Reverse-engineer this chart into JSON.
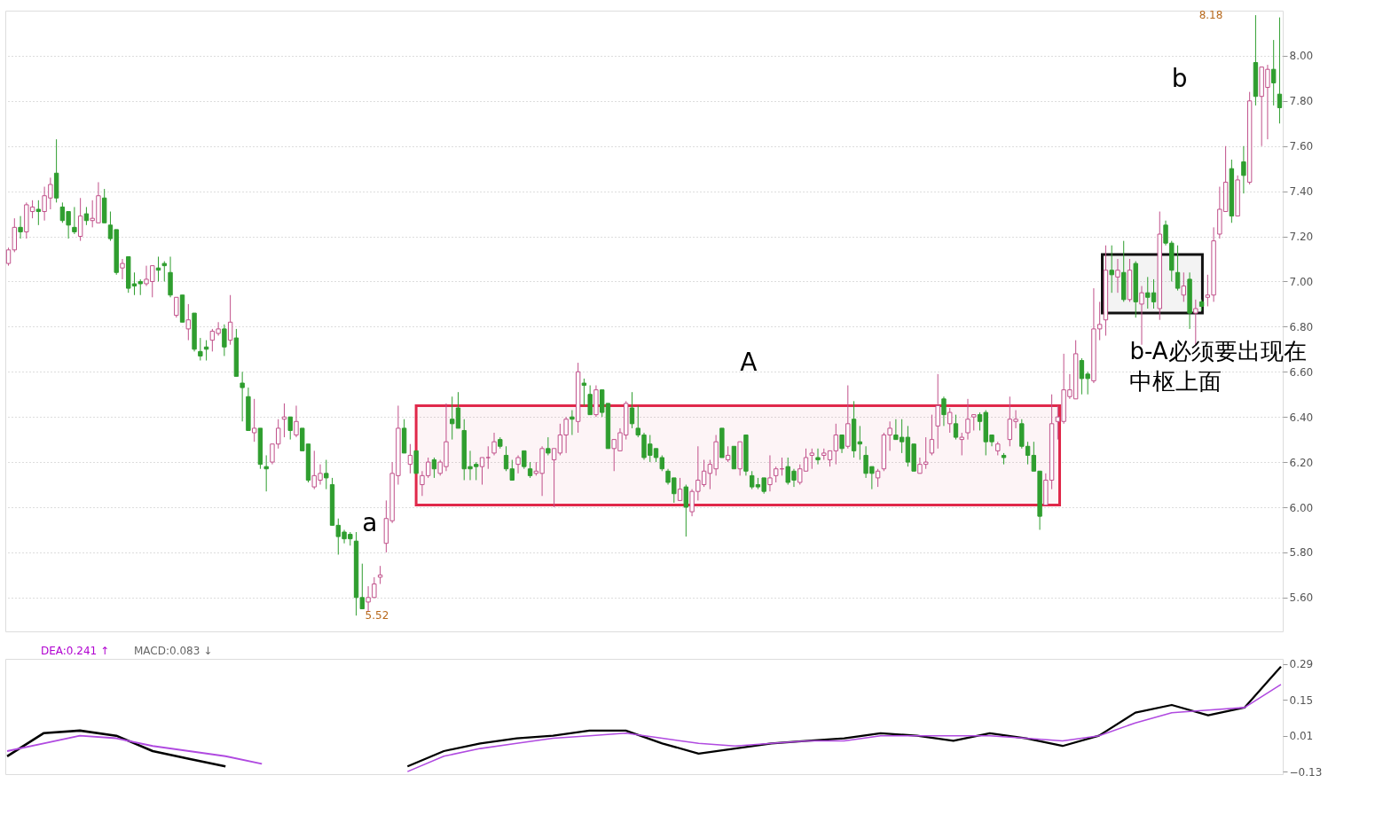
{
  "chart_data": [
    {
      "type": "candlestick",
      "categories": [
        null,
        null,
        null,
        null,
        null,
        null,
        null,
        null,
        null,
        null,
        null,
        null,
        null,
        null,
        null,
        null,
        null,
        null,
        null,
        null,
        null,
        null,
        null,
        null,
        null,
        null,
        null,
        null,
        null,
        null,
        null,
        null,
        null,
        null,
        null,
        null,
        null,
        null,
        null,
        null,
        null,
        null,
        null,
        null,
        null,
        null,
        null,
        null,
        null,
        null,
        null,
        null,
        null,
        null,
        null,
        null,
        null,
        null,
        null,
        null,
        null,
        null,
        null,
        null,
        null,
        null,
        null,
        null,
        null,
        null,
        null,
        null,
        null,
        null,
        null,
        null,
        null,
        null,
        null,
        null,
        null,
        null,
        null,
        null,
        null,
        null,
        null,
        null,
        null,
        null,
        null,
        null,
        null,
        null,
        null,
        null,
        null,
        null,
        null,
        null,
        null,
        null,
        null,
        null,
        null,
        null,
        null,
        null,
        null,
        null,
        null,
        null,
        null,
        null,
        null,
        null,
        null,
        null,
        null,
        null,
        null,
        null,
        null,
        null,
        null,
        null,
        null,
        null,
        null,
        null,
        null,
        null,
        null,
        null,
        null,
        null,
        null,
        null,
        null,
        null,
        null,
        null,
        null,
        null,
        null,
        null,
        null,
        null,
        null,
        null,
        null,
        null,
        null,
        null,
        null,
        null,
        null,
        null,
        null,
        null,
        null,
        null,
        null,
        null,
        null,
        null,
        null,
        null,
        null,
        null,
        null,
        null,
        null,
        null,
        null,
        null,
        null,
        null,
        null,
        null,
        null,
        null,
        null,
        null,
        null,
        null,
        null,
        null,
        null,
        null,
        null,
        null,
        null,
        null,
        null,
        null,
        null,
        null,
        null,
        null,
        null,
        null,
        null,
        null,
        null,
        null,
        null,
        null,
        null,
        null,
        null,
        null,
        null
      ],
      "ohlc": [
        [
          7.08,
          7.15,
          7.07,
          7.14
        ],
        [
          7.14,
          7.28,
          7.13,
          7.24
        ],
        [
          7.24,
          7.29,
          7.19,
          7.22
        ],
        [
          7.22,
          7.35,
          7.19,
          7.34
        ],
        [
          7.31,
          7.36,
          7.28,
          7.33
        ],
        [
          7.32,
          7.36,
          7.25,
          7.31
        ],
        [
          7.31,
          7.42,
          7.27,
          7.38
        ],
        [
          7.37,
          7.46,
          7.32,
          7.43
        ],
        [
          7.48,
          7.63,
          7.35,
          7.37
        ],
        [
          7.33,
          7.35,
          7.26,
          7.27
        ],
        [
          7.31,
          7.31,
          7.19,
          7.25
        ],
        [
          7.24,
          7.33,
          7.21,
          7.22
        ],
        [
          7.2,
          7.37,
          7.18,
          7.29
        ],
        [
          7.3,
          7.33,
          7.25,
          7.27
        ],
        [
          7.27,
          7.36,
          7.24,
          7.28
        ],
        [
          7.26,
          7.44,
          7.26,
          7.38
        ],
        [
          7.37,
          7.41,
          7.26,
          7.26
        ],
        [
          7.25,
          7.31,
          7.18,
          7.19
        ],
        [
          7.23,
          7.23,
          7.03,
          7.04
        ],
        [
          7.06,
          7.1,
          7.01,
          7.08
        ],
        [
          7.11,
          7.11,
          6.95,
          6.97
        ],
        [
          6.99,
          7.04,
          6.94,
          6.98
        ],
        [
          7.0,
          7.01,
          6.94,
          6.99
        ],
        [
          6.99,
          7.07,
          6.98,
          7.01
        ],
        [
          7.0,
          7.07,
          6.93,
          7.07
        ],
        [
          7.06,
          7.11,
          7.0,
          7.05
        ],
        [
          7.08,
          7.09,
          7.0,
          7.07
        ],
        [
          7.04,
          7.11,
          6.93,
          6.94
        ],
        [
          6.85,
          6.93,
          6.84,
          6.93
        ],
        [
          6.94,
          6.94,
          6.82,
          6.82
        ],
        [
          6.79,
          6.9,
          6.74,
          6.83
        ],
        [
          6.86,
          6.86,
          6.69,
          6.7
        ],
        [
          6.69,
          6.75,
          6.65,
          6.67
        ],
        [
          6.71,
          6.74,
          6.65,
          6.7
        ],
        [
          6.74,
          6.79,
          6.69,
          6.78
        ],
        [
          6.77,
          6.82,
          6.76,
          6.79
        ],
        [
          6.79,
          6.81,
          6.67,
          6.71
        ],
        [
          6.74,
          6.94,
          6.72,
          6.82
        ],
        [
          6.75,
          6.79,
          6.58,
          6.58
        ],
        [
          6.55,
          6.6,
          6.38,
          6.53
        ],
        [
          6.49,
          6.53,
          6.34,
          6.34
        ],
        [
          6.33,
          6.48,
          6.29,
          6.35
        ],
        [
          6.35,
          6.35,
          6.17,
          6.19
        ],
        [
          6.18,
          6.23,
          6.07,
          6.17
        ],
        [
          6.2,
          6.28,
          6.19,
          6.28
        ],
        [
          6.28,
          6.39,
          6.26,
          6.35
        ],
        [
          6.39,
          6.46,
          6.31,
          6.4
        ],
        [
          6.4,
          6.4,
          6.3,
          6.34
        ],
        [
          6.32,
          6.45,
          6.31,
          6.38
        ],
        [
          6.35,
          6.35,
          6.25,
          6.25
        ],
        [
          6.28,
          6.28,
          6.11,
          6.12
        ],
        [
          6.09,
          6.25,
          6.08,
          6.14
        ],
        [
          6.12,
          6.19,
          6.1,
          6.15
        ],
        [
          6.15,
          6.21,
          6.08,
          6.13
        ],
        [
          6.1,
          6.13,
          5.92,
          5.92
        ],
        [
          5.92,
          5.95,
          5.79,
          5.87
        ],
        [
          5.89,
          5.9,
          5.84,
          5.86
        ],
        [
          5.88,
          5.89,
          5.83,
          5.86
        ],
        [
          5.85,
          5.89,
          5.52,
          5.6
        ],
        [
          5.6,
          5.75,
          5.55,
          5.55
        ],
        [
          5.58,
          5.65,
          5.54,
          5.6
        ],
        [
          5.6,
          5.69,
          5.6,
          5.66
        ],
        [
          5.69,
          5.74,
          5.66,
          5.7
        ],
        [
          5.84,
          6.03,
          5.8,
          5.95
        ],
        [
          5.94,
          6.2,
          5.93,
          6.15
        ],
        [
          6.14,
          6.45,
          6.1,
          6.35
        ],
        [
          6.35,
          6.39,
          6.24,
          6.24
        ],
        [
          6.19,
          6.28,
          6.15,
          6.23
        ],
        [
          6.25,
          6.25,
          6.15,
          6.15
        ],
        [
          6.1,
          6.16,
          6.05,
          6.14
        ],
        [
          6.14,
          6.22,
          6.13,
          6.2
        ],
        [
          6.21,
          6.22,
          6.13,
          6.17
        ],
        [
          6.15,
          6.21,
          6.14,
          6.2
        ],
        [
          6.18,
          6.46,
          6.16,
          6.29
        ],
        [
          6.39,
          6.49,
          6.3,
          6.37
        ],
        [
          6.44,
          6.51,
          6.35,
          6.35
        ],
        [
          6.34,
          6.39,
          6.12,
          6.17
        ],
        [
          6.18,
          6.25,
          6.12,
          6.17
        ],
        [
          6.19,
          6.2,
          6.12,
          6.18
        ],
        [
          6.18,
          6.22,
          6.1,
          6.22
        ],
        [
          6.22,
          6.27,
          6.17,
          6.22
        ],
        [
          6.24,
          6.33,
          6.23,
          6.29
        ],
        [
          6.3,
          6.31,
          6.26,
          6.27
        ],
        [
          6.23,
          6.27,
          6.16,
          6.17
        ],
        [
          6.17,
          6.21,
          6.12,
          6.12
        ],
        [
          6.19,
          6.23,
          6.15,
          6.22
        ],
        [
          6.25,
          6.25,
          6.17,
          6.18
        ],
        [
          6.17,
          6.2,
          6.13,
          6.14
        ],
        [
          6.15,
          6.2,
          6.14,
          6.16
        ],
        [
          6.15,
          6.27,
          6.05,
          6.26
        ],
        [
          6.26,
          6.31,
          6.23,
          6.24
        ],
        [
          6.21,
          6.26,
          6.0,
          6.26
        ],
        [
          6.24,
          6.37,
          6.23,
          6.32
        ],
        [
          6.32,
          6.4,
          6.24,
          6.39
        ],
        [
          6.4,
          6.43,
          6.32,
          6.39
        ],
        [
          6.38,
          6.64,
          6.33,
          6.6
        ],
        [
          6.55,
          6.57,
          6.45,
          6.54
        ],
        [
          6.5,
          6.54,
          6.41,
          6.41
        ],
        [
          6.41,
          6.54,
          6.4,
          6.52
        ],
        [
          6.52,
          6.52,
          6.4,
          6.42
        ],
        [
          6.46,
          6.46,
          6.26,
          6.26
        ],
        [
          6.26,
          6.3,
          6.16,
          6.3
        ],
        [
          6.25,
          6.35,
          6.25,
          6.33
        ],
        [
          6.32,
          6.47,
          6.3,
          6.46
        ],
        [
          6.44,
          6.51,
          6.35,
          6.37
        ],
        [
          6.35,
          6.45,
          6.31,
          6.32
        ],
        [
          6.32,
          6.33,
          6.21,
          6.22
        ],
        [
          6.28,
          6.32,
          6.2,
          6.23
        ],
        [
          6.26,
          6.26,
          6.2,
          6.22
        ],
        [
          6.22,
          6.23,
          6.16,
          6.17
        ],
        [
          6.16,
          6.17,
          6.1,
          6.11
        ],
        [
          6.13,
          6.13,
          6.02,
          6.06
        ],
        [
          6.03,
          6.13,
          6.03,
          6.08
        ],
        [
          6.09,
          6.1,
          5.87,
          6.0
        ],
        [
          5.98,
          6.08,
          5.96,
          6.07
        ],
        [
          6.07,
          6.27,
          6.03,
          6.12
        ],
        [
          6.1,
          6.21,
          6.09,
          6.16
        ],
        [
          6.15,
          6.21,
          6.08,
          6.19
        ],
        [
          6.17,
          6.32,
          6.14,
          6.29
        ],
        [
          6.35,
          6.35,
          6.22,
          6.22
        ],
        [
          6.21,
          6.27,
          6.2,
          6.23
        ],
        [
          6.27,
          6.27,
          6.17,
          6.17
        ],
        [
          6.17,
          6.29,
          6.14,
          6.29
        ],
        [
          6.32,
          6.32,
          6.14,
          6.16
        ],
        [
          6.14,
          6.16,
          6.08,
          6.09
        ],
        [
          6.1,
          6.13,
          6.08,
          6.09
        ],
        [
          6.13,
          6.13,
          6.06,
          6.07
        ],
        [
          6.1,
          6.23,
          6.07,
          6.13
        ],
        [
          6.14,
          6.18,
          6.11,
          6.17
        ],
        [
          6.17,
          6.22,
          6.14,
          6.17
        ],
        [
          6.18,
          6.22,
          6.1,
          6.11
        ],
        [
          6.16,
          6.17,
          6.09,
          6.12
        ],
        [
          6.11,
          6.19,
          6.1,
          6.17
        ],
        [
          6.16,
          6.26,
          6.16,
          6.22
        ],
        [
          6.23,
          6.26,
          6.17,
          6.24
        ],
        [
          6.22,
          6.26,
          6.19,
          6.21
        ],
        [
          6.23,
          6.26,
          6.21,
          6.24
        ],
        [
          6.21,
          6.25,
          6.18,
          6.25
        ],
        [
          6.25,
          6.37,
          6.19,
          6.32
        ],
        [
          6.32,
          6.32,
          6.24,
          6.26
        ],
        [
          6.27,
          6.54,
          6.26,
          6.37
        ],
        [
          6.39,
          6.47,
          6.22,
          6.25
        ],
        [
          6.29,
          6.36,
          6.21,
          6.28
        ],
        [
          6.23,
          6.27,
          6.13,
          6.15
        ],
        [
          6.18,
          6.18,
          6.08,
          6.15
        ],
        [
          6.13,
          6.17,
          6.09,
          6.16
        ],
        [
          6.17,
          6.33,
          6.16,
          6.32
        ],
        [
          6.32,
          6.38,
          6.25,
          6.35
        ],
        [
          6.32,
          6.39,
          6.3,
          6.3
        ],
        [
          6.31,
          6.39,
          6.24,
          6.29
        ],
        [
          6.31,
          6.36,
          6.18,
          6.2
        ],
        [
          6.28,
          6.28,
          6.16,
          6.16
        ],
        [
          6.15,
          6.22,
          6.15,
          6.19
        ],
        [
          6.19,
          6.31,
          6.17,
          6.2
        ],
        [
          6.24,
          6.41,
          6.23,
          6.3
        ],
        [
          6.36,
          6.59,
          6.26,
          6.45
        ],
        [
          6.48,
          6.49,
          6.36,
          6.41
        ],
        [
          6.37,
          6.44,
          6.33,
          6.42
        ],
        [
          6.37,
          6.41,
          6.3,
          6.31
        ],
        [
          6.3,
          6.33,
          6.23,
          6.31
        ],
        [
          6.33,
          6.48,
          6.3,
          6.39
        ],
        [
          6.4,
          6.41,
          6.34,
          6.41
        ],
        [
          6.41,
          6.42,
          6.34,
          6.38
        ],
        [
          6.42,
          6.43,
          6.23,
          6.29
        ],
        [
          6.32,
          6.32,
          6.27,
          6.29
        ],
        [
          6.25,
          6.29,
          6.23,
          6.28
        ],
        [
          6.23,
          6.24,
          6.19,
          6.22
        ],
        [
          6.3,
          6.49,
          6.27,
          6.39
        ],
        [
          6.38,
          6.43,
          6.35,
          6.39
        ],
        [
          6.37,
          6.39,
          6.26,
          6.27
        ],
        [
          6.27,
          6.29,
          6.19,
          6.23
        ],
        [
          6.23,
          6.29,
          6.16,
          6.16
        ],
        [
          6.16,
          6.16,
          5.9,
          5.96
        ],
        [
          6.01,
          6.15,
          6.01,
          6.12
        ],
        [
          6.12,
          6.5,
          6.08,
          6.37
        ],
        [
          6.38,
          6.45,
          6.3,
          6.4
        ],
        [
          6.38,
          6.68,
          6.37,
          6.52
        ],
        [
          6.49,
          6.59,
          6.48,
          6.52
        ],
        [
          6.48,
          6.74,
          6.48,
          6.68
        ],
        [
          6.65,
          6.66,
          6.5,
          6.57
        ],
        [
          6.59,
          6.6,
          6.5,
          6.57
        ],
        [
          6.56,
          6.97,
          6.55,
          6.79
        ],
        [
          6.79,
          6.91,
          6.74,
          6.81
        ],
        [
          6.83,
          7.16,
          6.76,
          7.05
        ],
        [
          7.05,
          7.16,
          6.95,
          7.03
        ],
        [
          7.02,
          7.1,
          6.95,
          7.05
        ],
        [
          7.04,
          7.18,
          6.91,
          6.92
        ],
        [
          6.92,
          7.1,
          6.91,
          7.05
        ],
        [
          7.08,
          7.09,
          6.84,
          6.91
        ],
        [
          6.9,
          6.98,
          6.72,
          6.95
        ],
        [
          6.95,
          7.02,
          6.88,
          6.93
        ],
        [
          6.95,
          7.01,
          6.88,
          6.91
        ],
        [
          6.88,
          7.31,
          6.83,
          7.21
        ],
        [
          7.25,
          7.27,
          7.16,
          7.17
        ],
        [
          7.17,
          7.18,
          7.0,
          7.05
        ],
        [
          7.04,
          7.16,
          6.96,
          6.97
        ],
        [
          6.94,
          7.04,
          6.91,
          6.98
        ],
        [
          7.01,
          7.04,
          6.79,
          6.86
        ],
        [
          6.86,
          6.92,
          6.72,
          6.88
        ],
        [
          6.91,
          6.92,
          6.87,
          6.89
        ],
        [
          6.93,
          7.03,
          6.89,
          6.94
        ],
        [
          6.94,
          7.24,
          6.91,
          7.18
        ],
        [
          7.21,
          7.42,
          7.19,
          7.32
        ],
        [
          7.31,
          7.6,
          7.31,
          7.44
        ],
        [
          7.5,
          7.54,
          7.26,
          7.29
        ],
        [
          7.29,
          7.47,
          7.29,
          7.45
        ],
        [
          7.53,
          7.6,
          7.39,
          7.47
        ],
        [
          7.44,
          7.84,
          7.43,
          7.8
        ],
        [
          7.97,
          8.18,
          7.78,
          7.82
        ],
        [
          7.82,
          7.95,
          7.6,
          7.95
        ],
        [
          7.86,
          7.96,
          7.63,
          7.94
        ],
        [
          7.94,
          8.07,
          7.78,
          7.88
        ],
        [
          7.83,
          8.17,
          7.7,
          7.77
        ]
      ],
      "ylim": [
        5.45,
        8.2
      ],
      "yticks": [
        {
          "value": 5.6,
          "label": "5.60"
        },
        {
          "value": 5.8,
          "label": "5.80"
        },
        {
          "value": 6.0,
          "label": "6.00"
        },
        {
          "value": 6.2,
          "label": "6.20"
        },
        {
          "value": 6.4,
          "label": "6.40"
        },
        {
          "value": 6.6,
          "label": "6.60"
        },
        {
          "value": 6.8,
          "label": "6.80"
        },
        {
          "value": 7.0,
          "label": "7.00"
        },
        {
          "value": 7.2,
          "label": "7.20"
        },
        {
          "value": 7.4,
          "label": "7.40"
        },
        {
          "value": 7.6,
          "label": "7.60"
        },
        {
          "value": 7.8,
          "label": "7.80"
        },
        {
          "value": 8.0,
          "label": "8.00"
        }
      ],
      "grid": "y",
      "tick_labels": "y",
      "bands": [
        {
          "axis": "y",
          "from": 6.01,
          "to": 6.45,
          "color": "#e0284a"
        },
        {
          "axis": "y",
          "from": 6.86,
          "to": 7.12,
          "color": "#111111"
        }
      ],
      "annotations": [
        "a",
        "A",
        "b",
        "b-A必须要出现在中枢上面",
        "8.18",
        "5.52"
      ]
    },
    {
      "type": "line",
      "categories": [
        null,
        null,
        null,
        null,
        null,
        null,
        null,
        null,
        null,
        null,
        null,
        null,
        null,
        null,
        null,
        null,
        null,
        null,
        null,
        null,
        null,
        null,
        null,
        null,
        null,
        null,
        null,
        null,
        null,
        null,
        null,
        null,
        null,
        null,
        null,
        null
      ],
      "ylim": [
        -0.14,
        0.31
      ],
      "yticks": [
        -0.13,
        0.01,
        0.15,
        0.29
      ],
      "tick_labels": "y",
      "series": [
        {
          "color": "#000000",
          "values": [
            -0.07,
            0.02,
            0.03,
            0.01,
            -0.05,
            -0.08,
            -0.11,
            null,
            null,
            null,
            null,
            null,
            null,
            null,
            null,
            null,
            null,
            null,
            null,
            null,
            null,
            null,
            null,
            null,
            null,
            null,
            null,
            null,
            null,
            null,
            null,
            null,
            null,
            null,
            null,
            null
          ]
        },
        {
          "color": "#000000",
          "values": [
            null,
            null,
            null,
            null,
            null,
            null,
            null,
            null,
            null,
            null,
            null,
            -0.11,
            -0.05,
            -0.02,
            0.0,
            0.01,
            0.03,
            0.03,
            -0.02,
            -0.06,
            -0.04,
            -0.02,
            -0.01,
            0.0,
            0.02,
            0.01,
            -0.01,
            0.02,
            0.0,
            -0.03,
            0.01,
            0.1,
            0.13,
            0.09,
            0.12,
            0.28
          ]
        },
        {
          "color": "#b04ae0",
          "values": [
            -0.05,
            -0.02,
            0.01,
            0.0,
            -0.03,
            -0.05,
            -0.07,
            -0.1,
            null,
            null,
            null,
            null,
            null,
            null,
            null,
            null,
            null,
            null,
            null,
            null,
            null,
            null,
            null,
            null,
            null,
            null,
            null,
            null,
            null,
            null,
            null,
            null,
            null,
            null,
            null,
            null
          ]
        },
        {
          "color": "#b04ae0",
          "values": [
            null,
            null,
            null,
            null,
            null,
            null,
            null,
            null,
            null,
            null,
            null,
            -0.13,
            -0.07,
            -0.04,
            -0.02,
            0.0,
            0.01,
            0.02,
            0.0,
            -0.02,
            -0.03,
            -0.02,
            -0.01,
            -0.01,
            0.01,
            0.01,
            0.01,
            0.01,
            0.0,
            -0.01,
            0.01,
            0.06,
            0.1,
            0.11,
            0.12,
            0.21
          ]
        }
      ],
      "annotations": [
        "DEA:0.241 ↑",
        "MACD:0.083 ↓"
      ]
    }
  ]
}
